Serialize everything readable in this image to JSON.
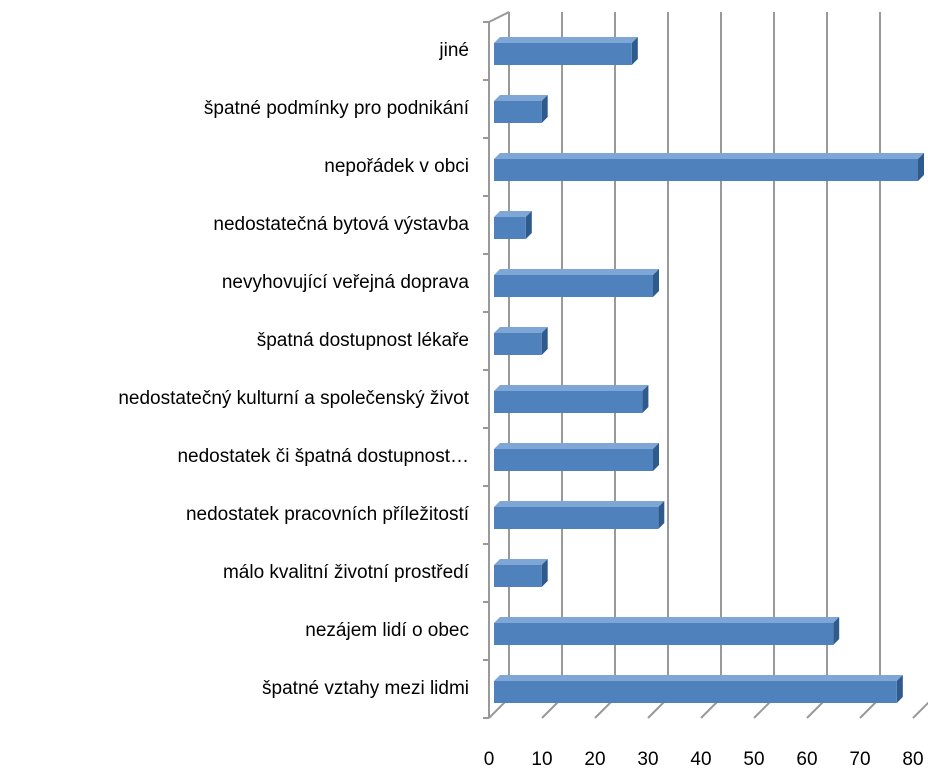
{
  "chart_data": {
    "type": "bar3d",
    "categories": [
      "jiné",
      "špatné podmínky pro podnikání",
      "nepořádek v obci",
      "nedostatečná bytová výstavba",
      "nevyhovující veřejná doprava",
      "špatná dostupnost lékaře",
      "nedostatečný kulturní a společenský život",
      "nedostatek či špatná dostupnost…",
      "nedostatek pracovních příležitostí",
      "málo kvalitní životní prostředí",
      "nezájem lidí o obec",
      "špatné vztahy mezi lidmi"
    ],
    "values": [
      26,
      9,
      80,
      6,
      30,
      9,
      28,
      30,
      31,
      9,
      64,
      76
    ],
    "color": "#4f81bd",
    "xlim": [
      0,
      80
    ],
    "xticks": [
      0,
      10,
      20,
      30,
      40,
      50,
      60,
      70,
      80
    ],
    "grid": true
  }
}
